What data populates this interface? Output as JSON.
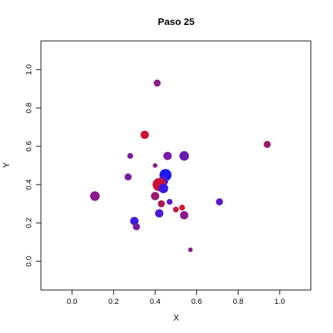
{
  "chart_data": {
    "type": "scatter",
    "title": "Paso 25",
    "xlabel": "X",
    "ylabel": "Y",
    "xlim": [
      -0.15,
      1.15
    ],
    "ylim": [
      -0.15,
      1.15
    ],
    "xticks": [
      0.0,
      0.2,
      0.4,
      0.6,
      0.8,
      1.0
    ],
    "xtick_labels": [
      "0.0",
      "0.2",
      "0.4",
      "0.6",
      "0.8",
      "1.0"
    ],
    "yticks": [
      0.0,
      0.2,
      0.4,
      0.6,
      0.8,
      1.0
    ],
    "ytick_labels": [
      "0.0",
      "0.2",
      "0.4",
      "0.6",
      "0.8",
      "1.0"
    ],
    "grid": false,
    "points": [
      {
        "x": 0.41,
        "y": 0.93,
        "size": 4,
        "color": "#8a1f8a"
      },
      {
        "x": 0.35,
        "y": 0.66,
        "size": 5,
        "color": "#cc1033"
      },
      {
        "x": 0.28,
        "y": 0.55,
        "size": 3,
        "color": "#7a1aa0"
      },
      {
        "x": 0.46,
        "y": 0.55,
        "size": 5,
        "color": "#7a1aa8"
      },
      {
        "x": 0.54,
        "y": 0.55,
        "size": 6,
        "color": "#6a1cb0"
      },
      {
        "x": 0.94,
        "y": 0.61,
        "size": 4,
        "color": "#9a1a6a"
      },
      {
        "x": 0.4,
        "y": 0.5,
        "size": 2,
        "color": "#8a1a8a"
      },
      {
        "x": 0.27,
        "y": 0.44,
        "size": 4,
        "color": "#7a1aa0"
      },
      {
        "x": 0.45,
        "y": 0.45,
        "size": 8,
        "color": "#1a1af0"
      },
      {
        "x": 0.44,
        "y": 0.42,
        "size": 6,
        "color": "#4a1ad8"
      },
      {
        "x": 0.42,
        "y": 0.4,
        "size": 9,
        "color": "#cc1033"
      },
      {
        "x": 0.44,
        "y": 0.38,
        "size": 6,
        "color": "#3a1ae0"
      },
      {
        "x": 0.11,
        "y": 0.34,
        "size": 6,
        "color": "#8a1a8a"
      },
      {
        "x": 0.4,
        "y": 0.34,
        "size": 5,
        "color": "#9a1a70"
      },
      {
        "x": 0.43,
        "y": 0.3,
        "size": 4,
        "color": "#aa1a55"
      },
      {
        "x": 0.47,
        "y": 0.31,
        "size": 3,
        "color": "#5a1ac8"
      },
      {
        "x": 0.71,
        "y": 0.31,
        "size": 4,
        "color": "#5a1ac8"
      },
      {
        "x": 0.5,
        "y": 0.27,
        "size": 3,
        "color": "#c01a40"
      },
      {
        "x": 0.53,
        "y": 0.28,
        "size": 3,
        "color": "#d01a30"
      },
      {
        "x": 0.42,
        "y": 0.25,
        "size": 5,
        "color": "#4a1ad8"
      },
      {
        "x": 0.54,
        "y": 0.24,
        "size": 5,
        "color": "#8a1a8a"
      },
      {
        "x": 0.3,
        "y": 0.21,
        "size": 5,
        "color": "#3a1ae0"
      },
      {
        "x": 0.31,
        "y": 0.18,
        "size": 4,
        "color": "#7a1aa0"
      },
      {
        "x": 0.57,
        "y": 0.06,
        "size": 2,
        "color": "#8a1a8a"
      }
    ]
  }
}
